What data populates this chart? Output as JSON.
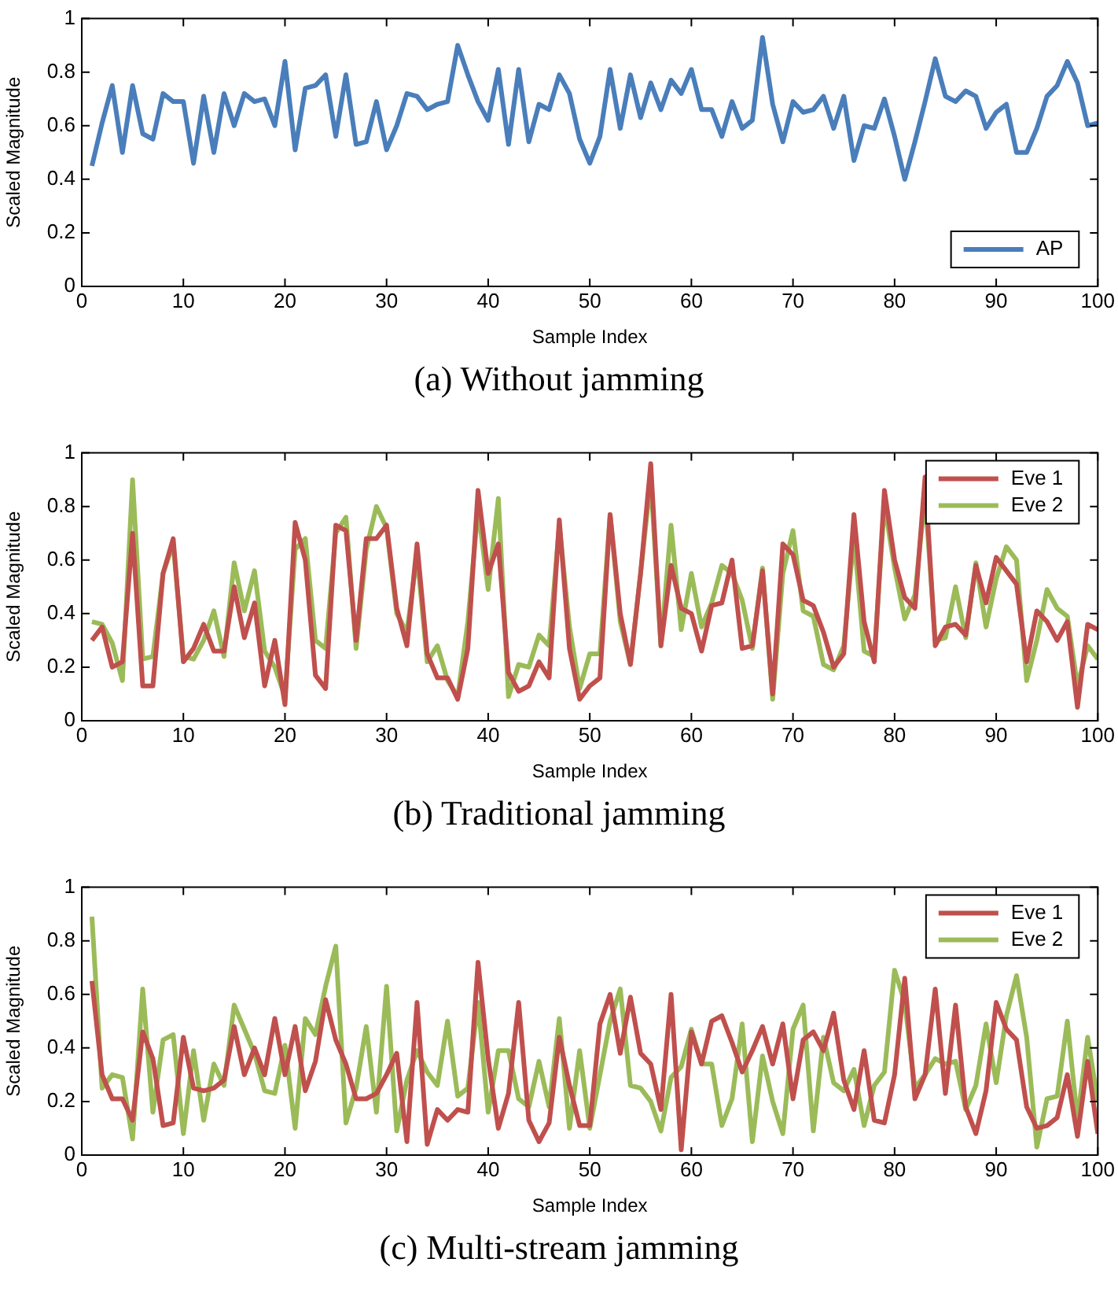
{
  "chart_data": [
    {
      "type": "line",
      "title": "(a) Without jamming",
      "xlabel": "Sample Index",
      "ylabel": "Scaled Magnitude",
      "xlim": [
        0,
        100
      ],
      "xticks": [
        0,
        10,
        20,
        30,
        40,
        50,
        60,
        70,
        80,
        90,
        100
      ],
      "ylim": [
        0,
        1
      ],
      "yticks": [
        0,
        0.2,
        0.4,
        0.6,
        0.8,
        1
      ],
      "grid": false,
      "legend": "bottom right",
      "x": [
        1,
        2,
        3,
        4,
        5,
        6,
        7,
        8,
        9,
        10,
        11,
        12,
        13,
        14,
        15,
        16,
        17,
        18,
        19,
        20,
        21,
        22,
        23,
        24,
        25,
        26,
        27,
        28,
        29,
        30,
        31,
        32,
        33,
        34,
        35,
        36,
        37,
        38,
        39,
        40,
        41,
        42,
        43,
        44,
        45,
        46,
        47,
        48,
        49,
        50,
        51,
        52,
        53,
        54,
        55,
        56,
        57,
        58,
        59,
        60,
        61,
        62,
        63,
        64,
        65,
        66,
        67,
        68,
        69,
        70,
        71,
        72,
        73,
        74,
        75,
        76,
        77,
        78,
        79,
        80,
        81,
        82,
        83,
        84,
        85,
        86,
        87,
        88,
        89,
        90,
        91,
        92,
        93,
        94,
        95,
        96,
        97,
        98,
        99,
        100
      ],
      "series": [
        {
          "name": "AP",
          "color": "#4a7ebb",
          "values": [
            0.45,
            0.61,
            0.75,
            0.5,
            0.75,
            0.57,
            0.55,
            0.72,
            0.69,
            0.69,
            0.46,
            0.71,
            0.5,
            0.72,
            0.6,
            0.72,
            0.69,
            0.7,
            0.6,
            0.84,
            0.51,
            0.74,
            0.75,
            0.79,
            0.56,
            0.79,
            0.53,
            0.54,
            0.69,
            0.51,
            0.6,
            0.72,
            0.71,
            0.66,
            0.68,
            0.69,
            0.9,
            0.79,
            0.69,
            0.62,
            0.81,
            0.53,
            0.81,
            0.54,
            0.68,
            0.66,
            0.79,
            0.72,
            0.55,
            0.46,
            0.56,
            0.81,
            0.59,
            0.79,
            0.63,
            0.76,
            0.66,
            0.77,
            0.72,
            0.81,
            0.66,
            0.66,
            0.56,
            0.69,
            0.59,
            0.62,
            0.93,
            0.68,
            0.54,
            0.69,
            0.65,
            0.66,
            0.71,
            0.59,
            0.71,
            0.47,
            0.6,
            0.59,
            0.7,
            0.56,
            0.4,
            0.54,
            0.69,
            0.85,
            0.71,
            0.69,
            0.73,
            0.71,
            0.59,
            0.65,
            0.68,
            0.5,
            0.5,
            0.59,
            0.71,
            0.75,
            0.84,
            0.76,
            0.6,
            0.61
          ]
        }
      ]
    },
    {
      "type": "line",
      "title": "(b) Traditional jamming",
      "xlabel": "Sample Index",
      "ylabel": "Scaled Magnitude",
      "xlim": [
        0,
        100
      ],
      "xticks": [
        0,
        10,
        20,
        30,
        40,
        50,
        60,
        70,
        80,
        90,
        100
      ],
      "ylim": [
        0,
        1
      ],
      "yticks": [
        0,
        0.2,
        0.4,
        0.6,
        0.8,
        1
      ],
      "grid": false,
      "legend": "top right",
      "x": [
        1,
        2,
        3,
        4,
        5,
        6,
        7,
        8,
        9,
        10,
        11,
        12,
        13,
        14,
        15,
        16,
        17,
        18,
        19,
        20,
        21,
        22,
        23,
        24,
        25,
        26,
        27,
        28,
        29,
        30,
        31,
        32,
        33,
        34,
        35,
        36,
        37,
        38,
        39,
        40,
        41,
        42,
        43,
        44,
        45,
        46,
        47,
        48,
        49,
        50,
        51,
        52,
        53,
        54,
        55,
        56,
        57,
        58,
        59,
        60,
        61,
        62,
        63,
        64,
        65,
        66,
        67,
        68,
        69,
        70,
        71,
        72,
        73,
        74,
        75,
        76,
        77,
        78,
        79,
        80,
        81,
        82,
        83,
        84,
        85,
        86,
        87,
        88,
        89,
        90,
        91,
        92,
        93,
        94,
        95,
        96,
        97,
        98,
        99,
        100
      ],
      "series": [
        {
          "name": "Eve 1",
          "color": "#c0504d",
          "values": [
            0.3,
            0.35,
            0.2,
            0.22,
            0.7,
            0.13,
            0.13,
            0.55,
            0.68,
            0.22,
            0.27,
            0.36,
            0.26,
            0.26,
            0.5,
            0.31,
            0.44,
            0.13,
            0.3,
            0.06,
            0.74,
            0.6,
            0.17,
            0.12,
            0.73,
            0.71,
            0.3,
            0.68,
            0.68,
            0.73,
            0.42,
            0.28,
            0.66,
            0.25,
            0.16,
            0.16,
            0.08,
            0.27,
            0.86,
            0.55,
            0.66,
            0.18,
            0.11,
            0.13,
            0.22,
            0.16,
            0.75,
            0.27,
            0.08,
            0.13,
            0.16,
            0.77,
            0.4,
            0.21,
            0.55,
            0.96,
            0.28,
            0.58,
            0.42,
            0.4,
            0.26,
            0.43,
            0.44,
            0.6,
            0.27,
            0.28,
            0.56,
            0.1,
            0.66,
            0.62,
            0.45,
            0.43,
            0.33,
            0.2,
            0.25,
            0.77,
            0.37,
            0.22,
            0.86,
            0.6,
            0.46,
            0.42,
            0.91,
            0.28,
            0.35,
            0.36,
            0.32,
            0.58,
            0.44,
            0.61,
            0.56,
            0.51,
            0.22,
            0.41,
            0.37,
            0.3,
            0.37,
            0.05,
            0.36,
            0.34
          ]
        },
        {
          "name": "Eve 2",
          "color": "#9bbb59",
          "values": [
            0.37,
            0.36,
            0.29,
            0.15,
            0.9,
            0.23,
            0.24,
            0.55,
            0.66,
            0.24,
            0.23,
            0.3,
            0.41,
            0.24,
            0.59,
            0.41,
            0.56,
            0.26,
            0.2,
            0.09,
            0.64,
            0.68,
            0.3,
            0.27,
            0.7,
            0.76,
            0.27,
            0.64,
            0.8,
            0.72,
            0.4,
            0.33,
            0.62,
            0.22,
            0.28,
            0.15,
            0.09,
            0.37,
            0.79,
            0.49,
            0.83,
            0.09,
            0.21,
            0.2,
            0.32,
            0.28,
            0.73,
            0.35,
            0.12,
            0.25,
            0.25,
            0.77,
            0.37,
            0.21,
            0.55,
            0.9,
            0.28,
            0.73,
            0.34,
            0.55,
            0.35,
            0.44,
            0.58,
            0.55,
            0.45,
            0.27,
            0.57,
            0.08,
            0.55,
            0.71,
            0.41,
            0.39,
            0.21,
            0.19,
            0.28,
            0.69,
            0.26,
            0.24,
            0.81,
            0.57,
            0.38,
            0.47,
            0.84,
            0.3,
            0.31,
            0.5,
            0.31,
            0.59,
            0.35,
            0.53,
            0.65,
            0.6,
            0.15,
            0.3,
            0.49,
            0.42,
            0.39,
            0.13,
            0.28,
            0.23
          ]
        }
      ]
    },
    {
      "type": "line",
      "title": "(c) Multi-stream jamming",
      "xlabel": "Sample Index",
      "ylabel": "Scaled Magnitude",
      "xlim": [
        0,
        100
      ],
      "xticks": [
        0,
        10,
        20,
        30,
        40,
        50,
        60,
        70,
        80,
        90,
        100
      ],
      "ylim": [
        0,
        1
      ],
      "yticks": [
        0,
        0.2,
        0.4,
        0.6,
        0.8,
        1
      ],
      "grid": false,
      "legend": "top right",
      "x": [
        1,
        2,
        3,
        4,
        5,
        6,
        7,
        8,
        9,
        10,
        11,
        12,
        13,
        14,
        15,
        16,
        17,
        18,
        19,
        20,
        21,
        22,
        23,
        24,
        25,
        26,
        27,
        28,
        29,
        30,
        31,
        32,
        33,
        34,
        35,
        36,
        37,
        38,
        39,
        40,
        41,
        42,
        43,
        44,
        45,
        46,
        47,
        48,
        49,
        50,
        51,
        52,
        53,
        54,
        55,
        56,
        57,
        58,
        59,
        60,
        61,
        62,
        63,
        64,
        65,
        66,
        67,
        68,
        69,
        70,
        71,
        72,
        73,
        74,
        75,
        76,
        77,
        78,
        79,
        80,
        81,
        82,
        83,
        84,
        85,
        86,
        87,
        88,
        89,
        90,
        91,
        92,
        93,
        94,
        95,
        96,
        97,
        98,
        99,
        100
      ],
      "series": [
        {
          "name": "Eve 1",
          "color": "#c0504d",
          "values": [
            0.65,
            0.3,
            0.21,
            0.21,
            0.13,
            0.46,
            0.36,
            0.11,
            0.12,
            0.44,
            0.25,
            0.24,
            0.25,
            0.28,
            0.48,
            0.3,
            0.4,
            0.3,
            0.51,
            0.3,
            0.48,
            0.24,
            0.35,
            0.58,
            0.43,
            0.34,
            0.21,
            0.21,
            0.23,
            0.3,
            0.38,
            0.05,
            0.57,
            0.04,
            0.17,
            0.13,
            0.17,
            0.16,
            0.72,
            0.36,
            0.1,
            0.23,
            0.57,
            0.13,
            0.05,
            0.12,
            0.44,
            0.26,
            0.11,
            0.11,
            0.49,
            0.6,
            0.38,
            0.59,
            0.38,
            0.34,
            0.17,
            0.6,
            0.02,
            0.46,
            0.34,
            0.5,
            0.52,
            0.42,
            0.31,
            0.39,
            0.48,
            0.34,
            0.49,
            0.21,
            0.43,
            0.46,
            0.39,
            0.53,
            0.28,
            0.17,
            0.39,
            0.13,
            0.12,
            0.3,
            0.66,
            0.21,
            0.3,
            0.62,
            0.23,
            0.56,
            0.18,
            0.08,
            0.24,
            0.57,
            0.47,
            0.43,
            0.18,
            0.1,
            0.11,
            0.14,
            0.3,
            0.07,
            0.35,
            0.08
          ]
        },
        {
          "name": "Eve 2",
          "color": "#9bbb59",
          "values": [
            0.89,
            0.25,
            0.3,
            0.29,
            0.06,
            0.62,
            0.16,
            0.43,
            0.45,
            0.08,
            0.39,
            0.13,
            0.34,
            0.26,
            0.56,
            0.47,
            0.38,
            0.24,
            0.23,
            0.41,
            0.1,
            0.51,
            0.45,
            0.63,
            0.78,
            0.12,
            0.25,
            0.48,
            0.16,
            0.63,
            0.09,
            0.28,
            0.39,
            0.31,
            0.26,
            0.5,
            0.22,
            0.25,
            0.57,
            0.16,
            0.39,
            0.39,
            0.21,
            0.18,
            0.35,
            0.18,
            0.51,
            0.1,
            0.39,
            0.1,
            0.3,
            0.5,
            0.62,
            0.26,
            0.25,
            0.2,
            0.09,
            0.29,
            0.33,
            0.47,
            0.34,
            0.34,
            0.11,
            0.21,
            0.49,
            0.05,
            0.37,
            0.2,
            0.08,
            0.47,
            0.56,
            0.09,
            0.44,
            0.27,
            0.24,
            0.32,
            0.11,
            0.26,
            0.31,
            0.69,
            0.57,
            0.25,
            0.3,
            0.36,
            0.34,
            0.35,
            0.17,
            0.26,
            0.49,
            0.27,
            0.52,
            0.67,
            0.44,
            0.03,
            0.21,
            0.22,
            0.5,
            0.13,
            0.44,
            0.2
          ]
        }
      ]
    }
  ]
}
